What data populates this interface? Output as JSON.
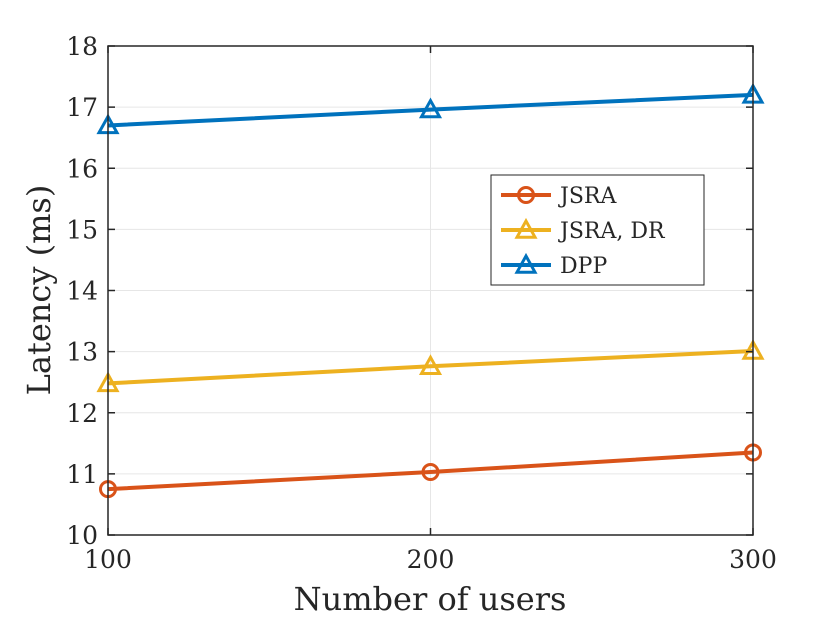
{
  "chart_data": {
    "type": "line",
    "title": "",
    "xlabel": "Number of users",
    "ylabel": "Latency (ms)",
    "x": [
      100,
      200,
      300
    ],
    "xlim": [
      100,
      300
    ],
    "ylim": [
      10,
      18
    ],
    "xticks": [
      "100",
      "200",
      "300"
    ],
    "yticks": [
      "10",
      "11",
      "12",
      "13",
      "14",
      "15",
      "16",
      "17",
      "18"
    ],
    "grid": true,
    "legend_position": "right-center",
    "series": [
      {
        "name": "JSRA",
        "values": [
          10.75,
          11.03,
          11.35
        ],
        "color": "#D95319",
        "marker": "circle"
      },
      {
        "name": "JSRA, DR",
        "values": [
          12.48,
          12.76,
          13.01
        ],
        "color": "#EDB120",
        "marker": "triangle"
      },
      {
        "name": "DPP",
        "values": [
          16.7,
          16.96,
          17.2
        ],
        "color": "#0072BD",
        "marker": "triangle"
      }
    ]
  }
}
